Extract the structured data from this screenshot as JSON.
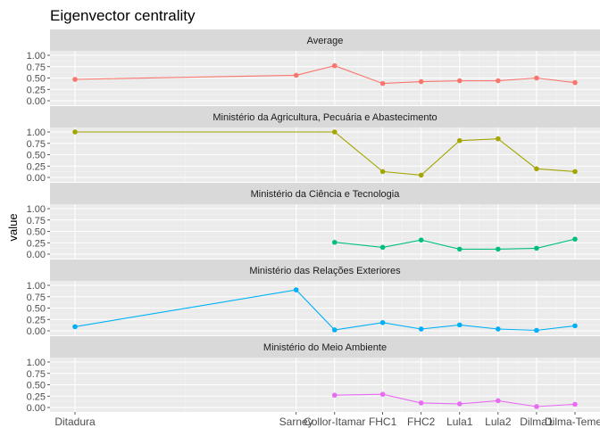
{
  "chart_data": {
    "type": "line",
    "title": "Eigenvector centrality",
    "xlabel": "",
    "ylabel": "value",
    "ylim": [
      0,
      1
    ],
    "y_ticks": [
      "0.00",
      "0.25",
      "0.50",
      "0.75",
      "1.00"
    ],
    "grid": true,
    "legend": "none",
    "x_positions": [
      1964,
      1987,
      1991,
      1996,
      2000,
      2004,
      2008,
      2012,
      2016
    ],
    "categories": [
      "Ditadura",
      "Sarney",
      "Collor-Itamar",
      "FHC1",
      "FHC2",
      "Lula1",
      "Lula2",
      "Dilma1",
      "Dilma-Temer"
    ],
    "panels": [
      {
        "name": "Average",
        "color": "#F8766D",
        "values": [
          0.47,
          0.56,
          0.77,
          0.38,
          0.42,
          0.44,
          0.44,
          0.5,
          0.4
        ]
      },
      {
        "name": "Ministério da Agricultura, Pecuária e Abastecimento",
        "color": "#A3A500",
        "values": [
          1.0,
          null,
          1.0,
          0.13,
          0.05,
          0.81,
          0.85,
          0.19,
          0.13
        ]
      },
      {
        "name": "Ministério da Ciência e Tecnologia",
        "color": "#00BF7D",
        "values": [
          null,
          null,
          0.26,
          0.15,
          0.31,
          0.11,
          0.11,
          0.13,
          0.33
        ]
      },
      {
        "name": "Ministério das Relações Exteriores",
        "color": "#00B0F6",
        "values": [
          0.09,
          0.9,
          0.02,
          0.18,
          0.04,
          0.13,
          0.04,
          0.01,
          0.11
        ]
      },
      {
        "name": "Ministério do Meio Ambiente",
        "color": "#E76BF3",
        "values": [
          null,
          null,
          0.27,
          0.29,
          0.1,
          0.08,
          0.15,
          0.02,
          0.07
        ]
      }
    ]
  }
}
